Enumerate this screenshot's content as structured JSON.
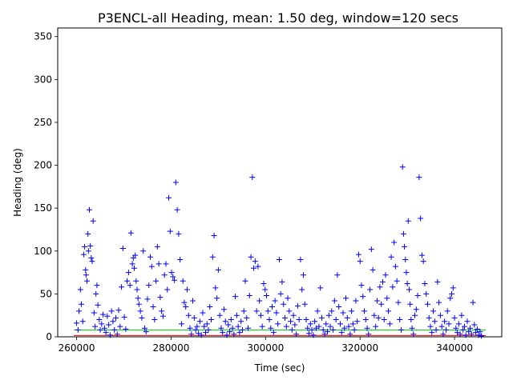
{
  "chart_data": {
    "type": "scatter",
    "title": "P3ENCL-all Heading, mean: 1.50 deg, window=120 secs",
    "xlabel": "Time (sec)",
    "ylabel": "Heading (deg)",
    "xlim": [
      256000,
      350000
    ],
    "ylim": [
      0,
      360
    ],
    "xticks": [
      260000,
      280000,
      300000,
      320000,
      340000
    ],
    "yticks": [
      0,
      50,
      100,
      150,
      200,
      250,
      300,
      350
    ],
    "xtick_labels": [
      "260000",
      "280000",
      "300000",
      "320000",
      "340000"
    ],
    "ytick_labels": [
      "0",
      "50",
      "100",
      "150",
      "200",
      "250",
      "300",
      "350"
    ],
    "grid": false,
    "marker": "+",
    "colors": {
      "points": "#0000ff",
      "reference_line_red": "#ff0000",
      "reference_line_green": "#00cc00"
    },
    "reference_lines": [
      {
        "color": "#ff0000",
        "y": 1.5
      },
      {
        "color": "#00cc00",
        "y": 8
      }
    ],
    "series": [
      {
        "points": [
          [
            260000,
            16
          ],
          [
            260300,
            8
          ],
          [
            260500,
            30
          ],
          [
            260800,
            55
          ],
          [
            261000,
            38
          ],
          [
            261300,
            18
          ],
          [
            261500,
            96
          ],
          [
            261700,
            105
          ],
          [
            261900,
            78
          ],
          [
            262000,
            72
          ],
          [
            262200,
            65
          ],
          [
            262400,
            120
          ],
          [
            262500,
            100
          ],
          [
            262700,
            148
          ],
          [
            262900,
            106
          ],
          [
            263100,
            92
          ],
          [
            263300,
            88
          ],
          [
            263500,
            135
          ],
          [
            263700,
            28
          ],
          [
            263900,
            12
          ],
          [
            264100,
            50
          ],
          [
            264300,
            60
          ],
          [
            264500,
            37
          ],
          [
            264800,
            20
          ],
          [
            265000,
            8
          ],
          [
            265300,
            15
          ],
          [
            265600,
            26
          ],
          [
            265900,
            10
          ],
          [
            266200,
            5
          ],
          [
            266500,
            24
          ],
          [
            266800,
            14
          ],
          [
            267100,
            2
          ],
          [
            267400,
            30
          ],
          [
            267700,
            18
          ],
          [
            268000,
            8
          ],
          [
            268300,
            22
          ],
          [
            268600,
            3
          ],
          [
            268900,
            31
          ],
          [
            269200,
            12
          ],
          [
            269500,
            58
          ],
          [
            269800,
            103
          ],
          [
            270100,
            23
          ],
          [
            270400,
            9
          ],
          [
            270700,
            65
          ],
          [
            271000,
            75
          ],
          [
            271300,
            60
          ],
          [
            271500,
            121
          ],
          [
            271800,
            85
          ],
          [
            272000,
            92
          ],
          [
            272200,
            80
          ],
          [
            272400,
            95
          ],
          [
            272600,
            65
          ],
          [
            272800,
            55
          ],
          [
            273000,
            45
          ],
          [
            273200,
            38
          ],
          [
            273500,
            30
          ],
          [
            273800,
            22
          ],
          [
            274100,
            100
          ],
          [
            274400,
            10
          ],
          [
            274700,
            6
          ],
          [
            275000,
            44
          ],
          [
            275300,
            60
          ],
          [
            275600,
            93
          ],
          [
            275900,
            82
          ],
          [
            276200,
            35
          ],
          [
            276500,
            20
          ],
          [
            276800,
            65
          ],
          [
            277100,
            105
          ],
          [
            277400,
            85
          ],
          [
            277700,
            46
          ],
          [
            278000,
            30
          ],
          [
            278300,
            24
          ],
          [
            278600,
            72
          ],
          [
            278900,
            85
          ],
          [
            279200,
            55
          ],
          [
            279500,
            162
          ],
          [
            279800,
            123
          ],
          [
            280100,
            75
          ],
          [
            280400,
            70
          ],
          [
            280700,
            66
          ],
          [
            281000,
            180
          ],
          [
            281300,
            148
          ],
          [
            281600,
            120
          ],
          [
            281900,
            90
          ],
          [
            282200,
            15
          ],
          [
            282500,
            65
          ],
          [
            282800,
            40
          ],
          [
            283100,
            35
          ],
          [
            283400,
            55
          ],
          [
            283700,
            25
          ],
          [
            284000,
            10
          ],
          [
            284300,
            3
          ],
          [
            284600,
            42
          ],
          [
            284900,
            22
          ],
          [
            285200,
            8
          ],
          [
            285500,
            12
          ],
          [
            285800,
            4
          ],
          [
            286100,
            18
          ],
          [
            286400,
            2
          ],
          [
            286700,
            28
          ],
          [
            287000,
            12
          ],
          [
            287300,
            5
          ],
          [
            287600,
            15
          ],
          [
            287900,
            8
          ],
          [
            288200,
            35
          ],
          [
            288500,
            20
          ],
          [
            288800,
            93
          ],
          [
            289100,
            118
          ],
          [
            289400,
            57
          ],
          [
            289700,
            45
          ],
          [
            290000,
            78
          ],
          [
            290300,
            25
          ],
          [
            290600,
            10
          ],
          [
            290900,
            5
          ],
          [
            291200,
            32
          ],
          [
            291500,
            18
          ],
          [
            291800,
            2
          ],
          [
            292100,
            14
          ],
          [
            292400,
            6
          ],
          [
            292700,
            20
          ],
          [
            293000,
            10
          ],
          [
            293300,
            3
          ],
          [
            293600,
            47
          ],
          [
            293900,
            25
          ],
          [
            294200,
            12
          ],
          [
            294500,
            5
          ],
          [
            294800,
            18
          ],
          [
            295100,
            8
          ],
          [
            295400,
            30
          ],
          [
            295700,
            65
          ],
          [
            296000,
            22
          ],
          [
            296300,
            10
          ],
          [
            296600,
            48
          ],
          [
            296900,
            93
          ],
          [
            297200,
            186
          ],
          [
            297500,
            80
          ],
          [
            297800,
            88
          ],
          [
            298100,
            30
          ],
          [
            298400,
            82
          ],
          [
            298700,
            42
          ],
          [
            299000,
            25
          ],
          [
            299300,
            12
          ],
          [
            299600,
            62
          ],
          [
            299900,
            55
          ],
          [
            300200,
            48
          ],
          [
            300500,
            30
          ],
          [
            300800,
            20
          ],
          [
            301100,
            10
          ],
          [
            301400,
            35
          ],
          [
            301700,
            5
          ],
          [
            302000,
            42
          ],
          [
            302300,
            28
          ],
          [
            302600,
            15
          ],
          [
            302900,
            90
          ],
          [
            303200,
            50
          ],
          [
            303500,
            64
          ],
          [
            303800,
            38
          ],
          [
            304100,
            22
          ],
          [
            304400,
            12
          ],
          [
            304700,
            45
          ],
          [
            305000,
            30
          ],
          [
            305300,
            18
          ],
          [
            305600,
            8
          ],
          [
            305900,
            25
          ],
          [
            306200,
            14
          ],
          [
            306500,
            3
          ],
          [
            306800,
            36
          ],
          [
            307100,
            20
          ],
          [
            307400,
            90
          ],
          [
            307700,
            55
          ],
          [
            308000,
            72
          ],
          [
            308300,
            38
          ],
          [
            308600,
            20
          ],
          [
            308900,
            10
          ],
          [
            309200,
            4
          ],
          [
            309500,
            15
          ],
          [
            309800,
            8
          ],
          [
            310100,
            2
          ],
          [
            310400,
            18
          ],
          [
            310700,
            10
          ],
          [
            311000,
            30
          ],
          [
            311300,
            12
          ],
          [
            311600,
            57
          ],
          [
            311900,
            22
          ],
          [
            312200,
            8
          ],
          [
            312500,
            3
          ],
          [
            312800,
            15
          ],
          [
            313100,
            6
          ],
          [
            313400,
            25
          ],
          [
            313700,
            12
          ],
          [
            314000,
            30
          ],
          [
            314300,
            8
          ],
          [
            314600,
            42
          ],
          [
            314900,
            20
          ],
          [
            315200,
            72
          ],
          [
            315500,
            35
          ],
          [
            315800,
            15
          ],
          [
            316100,
            5
          ],
          [
            316400,
            28
          ],
          [
            316700,
            10
          ],
          [
            317000,
            45
          ],
          [
            317300,
            22
          ],
          [
            317600,
            12
          ],
          [
            317900,
            3
          ],
          [
            318200,
            30
          ],
          [
            318500,
            15
          ],
          [
            318800,
            8
          ],
          [
            319100,
            42
          ],
          [
            319400,
            18
          ],
          [
            319700,
            96
          ],
          [
            320000,
            88
          ],
          [
            320300,
            60
          ],
          [
            320600,
            47
          ],
          [
            320900,
            30
          ],
          [
            321200,
            20
          ],
          [
            321500,
            10
          ],
          [
            321800,
            3
          ],
          [
            322100,
            55
          ],
          [
            322400,
            102
          ],
          [
            322700,
            78
          ],
          [
            323000,
            25
          ],
          [
            323300,
            12
          ],
          [
            323600,
            42
          ],
          [
            323900,
            22
          ],
          [
            324200,
            58
          ],
          [
            324500,
            38
          ],
          [
            324800,
            64
          ],
          [
            325100,
            20
          ],
          [
            325400,
            72
          ],
          [
            325700,
            45
          ],
          [
            326000,
            30
          ],
          [
            326300,
            15
          ],
          [
            326600,
            93
          ],
          [
            326900,
            58
          ],
          [
            327200,
            110
          ],
          [
            327500,
            82
          ],
          [
            327800,
            65
          ],
          [
            328100,
            40
          ],
          [
            328400,
            20
          ],
          [
            328700,
            8
          ],
          [
            329000,
            198
          ],
          [
            329200,
            120
          ],
          [
            329400,
            105
          ],
          [
            329600,
            90
          ],
          [
            329800,
            75
          ],
          [
            330000,
            62
          ],
          [
            330200,
            135
          ],
          [
            330400,
            55
          ],
          [
            330600,
            38
          ],
          [
            330800,
            20
          ],
          [
            331000,
            10
          ],
          [
            331300,
            3
          ],
          [
            331600,
            25
          ],
          [
            331900,
            32
          ],
          [
            332200,
            48
          ],
          [
            332500,
            186
          ],
          [
            332800,
            138
          ],
          [
            333100,
            95
          ],
          [
            333400,
            88
          ],
          [
            333700,
            62
          ],
          [
            334000,
            50
          ],
          [
            334300,
            38
          ],
          [
            334600,
            22
          ],
          [
            334900,
            12
          ],
          [
            335200,
            5
          ],
          [
            335500,
            30
          ],
          [
            335800,
            18
          ],
          [
            336100,
            8
          ],
          [
            336400,
            64
          ],
          [
            336700,
            40
          ],
          [
            337000,
            25
          ],
          [
            337300,
            12
          ],
          [
            337600,
            3
          ],
          [
            337900,
            18
          ],
          [
            338200,
            8
          ],
          [
            338500,
            30
          ],
          [
            338800,
            15
          ],
          [
            339100,
            45
          ],
          [
            339400,
            50
          ],
          [
            339700,
            57
          ],
          [
            340000,
            22
          ],
          [
            340300,
            10
          ],
          [
            340600,
            5
          ],
          [
            340900,
            15
          ],
          [
            341200,
            3
          ],
          [
            341500,
            25
          ],
          [
            341800,
            8
          ],
          [
            342100,
            12
          ],
          [
            342400,
            2
          ],
          [
            342700,
            18
          ],
          [
            343000,
            6
          ],
          [
            343300,
            10
          ],
          [
            343600,
            3
          ],
          [
            343900,
            40
          ],
          [
            344200,
            14
          ],
          [
            344500,
            5
          ],
          [
            344800,
            9
          ],
          [
            345100,
            2
          ],
          [
            345400,
            6
          ],
          [
            345700,
            1
          ]
        ]
      }
    ]
  }
}
